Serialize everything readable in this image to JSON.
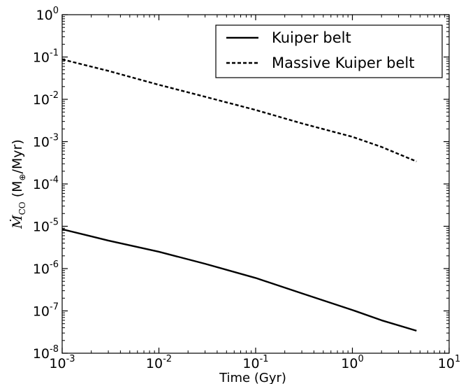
{
  "chart_data": {
    "type": "line",
    "x_scale": "log",
    "y_scale": "log",
    "xlim": [
      0.001,
      10
    ],
    "ylim": [
      1e-08,
      1
    ],
    "xlabel": "Time (Gyr)",
    "ylabel": {
      "base": "Ṁ",
      "subscript": "CO",
      "units": " (M",
      "units_subscript": "⊕",
      "units_tail": "/Myr)"
    },
    "x_ticks": [
      {
        "value": 0.001,
        "base": "10",
        "exp": "-3"
      },
      {
        "value": 0.01,
        "base": "10",
        "exp": "-2"
      },
      {
        "value": 0.1,
        "base": "10",
        "exp": "-1"
      },
      {
        "value": 1,
        "base": "10",
        "exp": "0"
      },
      {
        "value": 10,
        "base": "10",
        "exp": "1"
      }
    ],
    "y_ticks": [
      {
        "value": 1e-08,
        "base": "10",
        "exp": "-8"
      },
      {
        "value": 1e-07,
        "base": "10",
        "exp": "-7"
      },
      {
        "value": 1e-06,
        "base": "10",
        "exp": "-6"
      },
      {
        "value": 1e-05,
        "base": "10",
        "exp": "-5"
      },
      {
        "value": 0.0001,
        "base": "10",
        "exp": "-4"
      },
      {
        "value": 0.001,
        "base": "10",
        "exp": "-3"
      },
      {
        "value": 0.01,
        "base": "10",
        "exp": "-2"
      },
      {
        "value": 0.1,
        "base": "10",
        "exp": "-1"
      },
      {
        "value": 1,
        "base": "10",
        "exp": "0"
      }
    ],
    "grid": false,
    "legend_position": "top-right",
    "series": [
      {
        "name": "Kuiper belt",
        "style": "solid",
        "color": "#000000",
        "points": [
          [
            0.001,
            8.5e-06
          ],
          [
            0.003,
            4.6e-06
          ],
          [
            0.01,
            2.5e-06
          ],
          [
            0.03,
            1.3e-06
          ],
          [
            0.1,
            6e-07
          ],
          [
            0.3,
            2.6e-07
          ],
          [
            1.0,
            1.05e-07
          ],
          [
            2.0,
            6e-08
          ],
          [
            4.6,
            3.4e-08
          ]
        ]
      },
      {
        "name": "Massive Kuiper belt",
        "style": "dashed",
        "color": "#000000",
        "points": [
          [
            0.001,
            0.088
          ],
          [
            0.003,
            0.047
          ],
          [
            0.01,
            0.022
          ],
          [
            0.03,
            0.0115
          ],
          [
            0.1,
            0.0056
          ],
          [
            0.3,
            0.0027
          ],
          [
            1.0,
            0.0013
          ],
          [
            2.0,
            0.00075
          ],
          [
            4.6,
            0.00034
          ]
        ]
      }
    ]
  }
}
